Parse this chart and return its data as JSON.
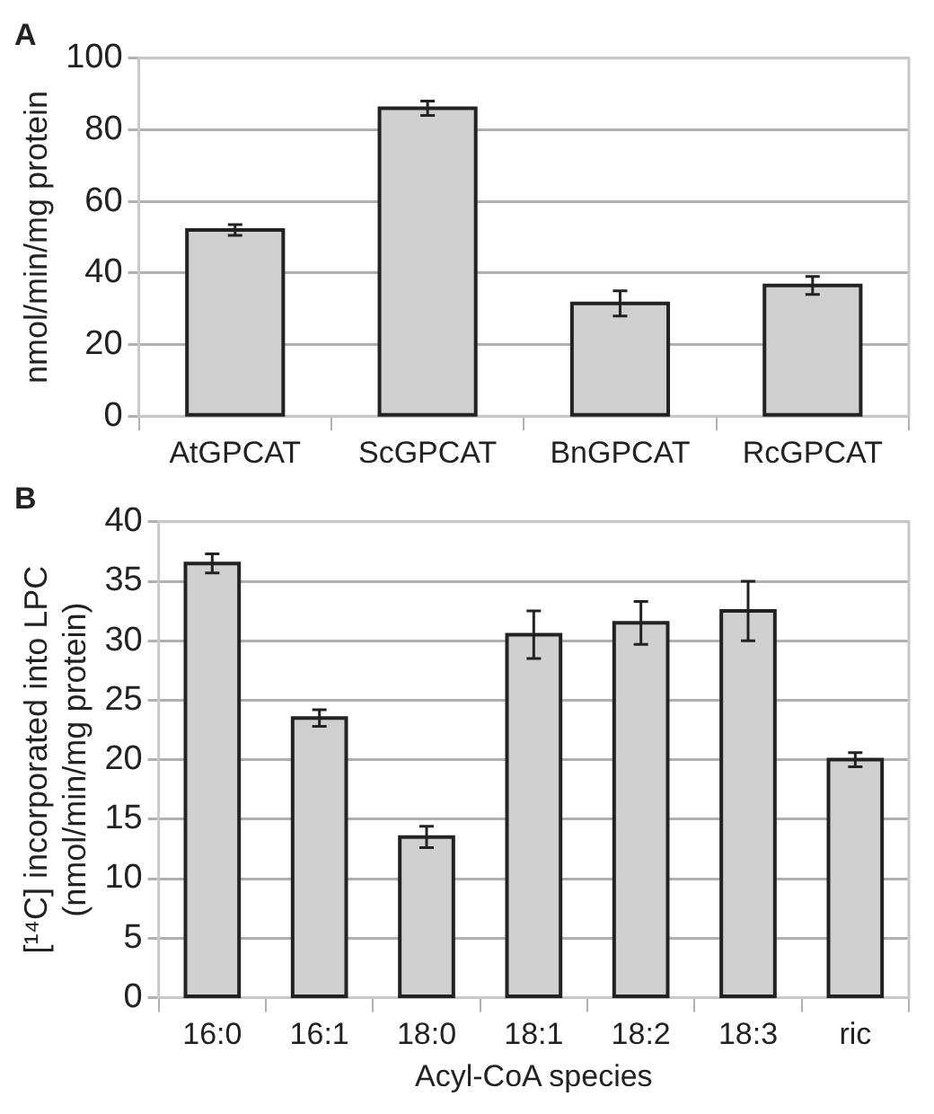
{
  "chart_data": [
    {
      "type": "bar",
      "title": "A",
      "ylabel": "nmol/min/mg protein",
      "categories": [
        "AtGPCAT",
        "ScGPCAT",
        "BnGPCAT",
        "RcGPCAT"
      ],
      "values": [
        52,
        86,
        31.5,
        36.5
      ],
      "errors": [
        1.5,
        2,
        3.5,
        2.5
      ],
      "color": "#d0d0d0",
      "ylim": [
        0,
        100
      ],
      "yticks": [
        0,
        20,
        40,
        60,
        80,
        100
      ],
      "grid": "y",
      "legend": false
    },
    {
      "type": "bar",
      "title": "B",
      "xlabel": "Acyl-CoA species",
      "ylabel": "[¹⁴C] incorporated into LPC\n(nmol/min/mg protein)",
      "categories": [
        "16:0",
        "16:1",
        "18:0",
        "18:1",
        "18:2",
        "18:3",
        "ric"
      ],
      "values": [
        36.5,
        23.5,
        13.5,
        30.5,
        31.5,
        32.5,
        20
      ],
      "errors": [
        0.8,
        0.7,
        0.9,
        2,
        1.8,
        2.5,
        0.6
      ],
      "color": "#d0d0d0",
      "ylim": [
        0,
        40
      ],
      "yticks": [
        0,
        5,
        10,
        15,
        20,
        25,
        30,
        35,
        40
      ],
      "grid": "y",
      "legend": false
    }
  ]
}
